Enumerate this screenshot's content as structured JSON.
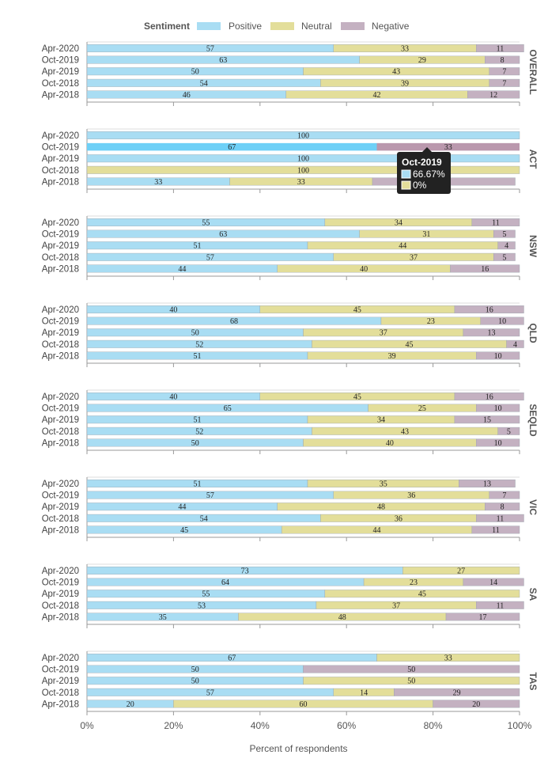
{
  "chart_data": {
    "type": "bar",
    "orientation": "horizontal",
    "stacked": "percent",
    "legend": {
      "title": "Sentiment",
      "placement": "top-center",
      "entries": [
        "Positive",
        "Neutral",
        "Negative"
      ]
    },
    "colors": {
      "Positive": "#a9ddf3",
      "Neutral": "#e3de9a",
      "Negative": "#c4b1c1",
      "Positive_highlight": "#6ed0f7",
      "Negative_highlight": "#ba98ad"
    },
    "xlabel": "Percent of respondents",
    "xlim": [
      0,
      100
    ],
    "x_ticks": [
      "0%",
      "20%",
      "40%",
      "60%",
      "80%",
      "100%"
    ],
    "categories": [
      "Apr-2020",
      "Oct-2019",
      "Apr-2019",
      "Oct-2018",
      "Apr-2018"
    ],
    "facets": [
      {
        "name": "OVERALL",
        "rows": [
          {
            "Positive": 57,
            "Neutral": 33,
            "Negative": 11
          },
          {
            "Positive": 63,
            "Neutral": 29,
            "Negative": 8
          },
          {
            "Positive": 50,
            "Neutral": 43,
            "Negative": 7
          },
          {
            "Positive": 54,
            "Neutral": 39,
            "Negative": 7
          },
          {
            "Positive": 46,
            "Neutral": 42,
            "Negative": 12
          }
        ]
      },
      {
        "name": "ACT",
        "rows": [
          {
            "Positive": 100,
            "Neutral": 0,
            "Negative": 0
          },
          {
            "Positive": 67,
            "Neutral": 0,
            "Negative": 33
          },
          {
            "Positive": 100,
            "Neutral": 0,
            "Negative": 0
          },
          {
            "Positive": 0,
            "Neutral": 100,
            "Negative": 0
          },
          {
            "Positive": 33,
            "Neutral": 33,
            "Negative": 33
          }
        ]
      },
      {
        "name": "NSW",
        "rows": [
          {
            "Positive": 55,
            "Neutral": 34,
            "Negative": 11
          },
          {
            "Positive": 63,
            "Neutral": 31,
            "Negative": 5
          },
          {
            "Positive": 51,
            "Neutral": 44,
            "Negative": 4
          },
          {
            "Positive": 57,
            "Neutral": 37,
            "Negative": 5
          },
          {
            "Positive": 44,
            "Neutral": 40,
            "Negative": 16
          }
        ]
      },
      {
        "name": "QLD",
        "rows": [
          {
            "Positive": 40,
            "Neutral": 45,
            "Negative": 16
          },
          {
            "Positive": 68,
            "Neutral": 23,
            "Negative": 10
          },
          {
            "Positive": 50,
            "Neutral": 37,
            "Negative": 13
          },
          {
            "Positive": 52,
            "Neutral": 45,
            "Negative": 4
          },
          {
            "Positive": 51,
            "Neutral": 39,
            "Negative": 10
          }
        ]
      },
      {
        "name": "SEQLD",
        "rows": [
          {
            "Positive": 40,
            "Neutral": 45,
            "Negative": 16
          },
          {
            "Positive": 65,
            "Neutral": 25,
            "Negative": 10
          },
          {
            "Positive": 51,
            "Neutral": 34,
            "Negative": 15
          },
          {
            "Positive": 52,
            "Neutral": 43,
            "Negative": 5
          },
          {
            "Positive": 50,
            "Neutral": 40,
            "Negative": 10
          }
        ]
      },
      {
        "name": "VIC",
        "rows": [
          {
            "Positive": 51,
            "Neutral": 35,
            "Negative": 13
          },
          {
            "Positive": 57,
            "Neutral": 36,
            "Negative": 7
          },
          {
            "Positive": 44,
            "Neutral": 48,
            "Negative": 8
          },
          {
            "Positive": 54,
            "Neutral": 36,
            "Negative": 11
          },
          {
            "Positive": 45,
            "Neutral": 44,
            "Negative": 11
          }
        ]
      },
      {
        "name": "SA",
        "rows": [
          {
            "Positive": 73,
            "Neutral": 27,
            "Negative": 0
          },
          {
            "Positive": 64,
            "Neutral": 23,
            "Negative": 14
          },
          {
            "Positive": 55,
            "Neutral": 45,
            "Negative": 0
          },
          {
            "Positive": 53,
            "Neutral": 37,
            "Negative": 11
          },
          {
            "Positive": 35,
            "Neutral": 48,
            "Negative": 17
          }
        ]
      },
      {
        "name": "TAS",
        "rows": [
          {
            "Positive": 67,
            "Neutral": 33,
            "Negative": 0
          },
          {
            "Positive": 50,
            "Neutral": 0,
            "Negative": 50
          },
          {
            "Positive": 50,
            "Neutral": 50,
            "Negative": 0
          },
          {
            "Positive": 57,
            "Neutral": 14,
            "Negative": 29
          },
          {
            "Positive": 20,
            "Neutral": 60,
            "Negative": 20
          }
        ]
      }
    ],
    "highlight": {
      "facet": "ACT",
      "category": "Oct-2019"
    },
    "tooltip": {
      "title": "Oct-2019",
      "entries": [
        {
          "series": "Positive",
          "text": "66.67%"
        },
        {
          "series": "Neutral",
          "text": "0%"
        }
      ]
    }
  }
}
